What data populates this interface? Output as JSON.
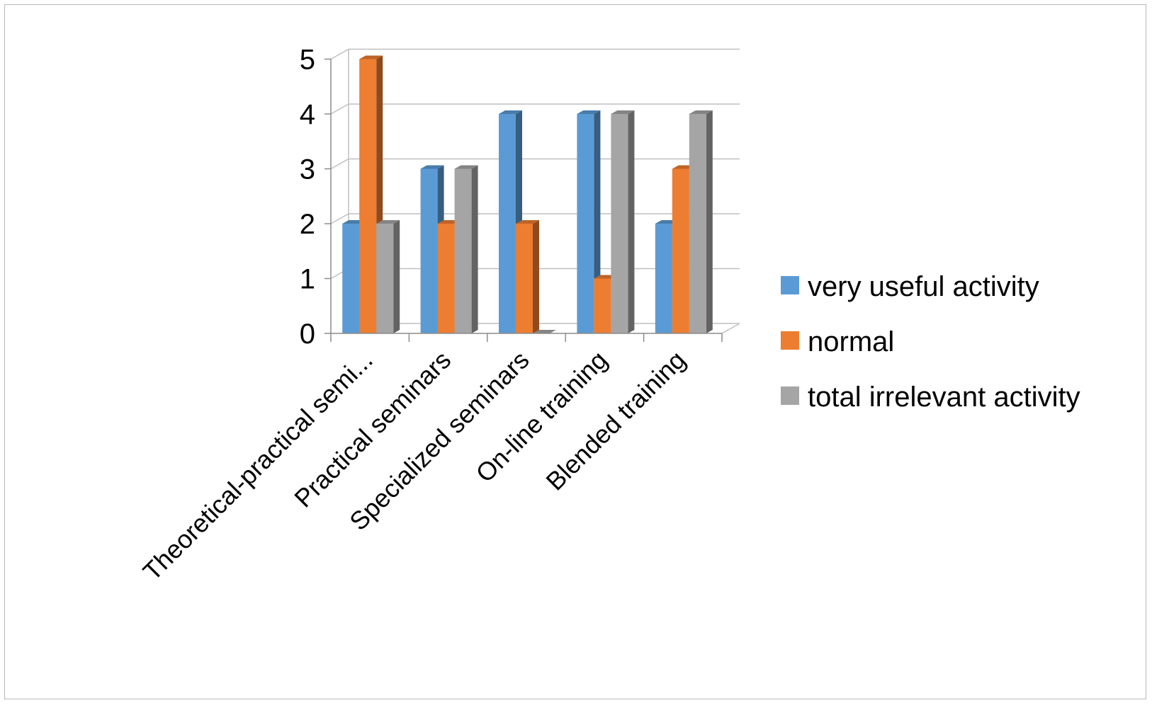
{
  "chart_data": {
    "type": "bar",
    "categories": [
      "Theoretical-practical semi...",
      "Practical seminars",
      "Specialized seminars",
      "On-line training",
      "Blended training"
    ],
    "series": [
      {
        "name": "very useful activity",
        "color": "#5b9bd5",
        "values": [
          2,
          3,
          4,
          4,
          2
        ]
      },
      {
        "name": "normal",
        "color": "#ed7d31",
        "values": [
          5,
          2,
          2,
          1,
          3
        ]
      },
      {
        "name": "total irrelevant activity",
        "color": "#a5a5a5",
        "values": [
          2,
          3,
          0,
          4,
          4
        ]
      }
    ],
    "yticks": [
      "0",
      "1",
      "2",
      "3",
      "4",
      "5"
    ],
    "ylim": [
      0,
      5
    ],
    "grid": true,
    "legend": "right",
    "style": "3d-clustered-column"
  }
}
